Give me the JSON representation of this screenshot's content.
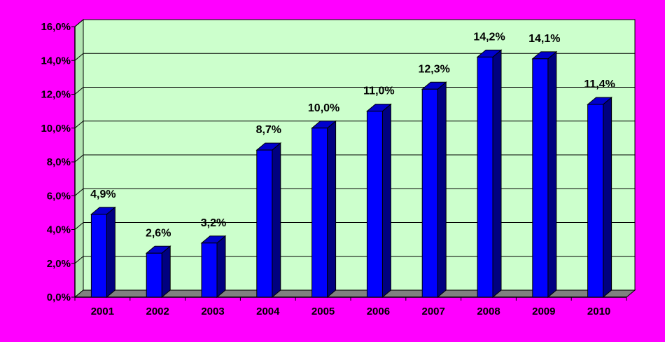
{
  "chart_data": {
    "type": "bar",
    "title": "",
    "xlabel": "",
    "ylabel": "",
    "categories": [
      "2001",
      "2002",
      "2003",
      "2004",
      "2005",
      "2006",
      "2007",
      "2008",
      "2009",
      "2010"
    ],
    "values": [
      4.9,
      2.6,
      3.2,
      8.7,
      10.0,
      11.0,
      12.3,
      14.2,
      14.1,
      11.4
    ],
    "value_labels": [
      "4,9%",
      "2,6%",
      "3,2%",
      "8,7%",
      "10,0%",
      "11,0%",
      "12,3%",
      "14,2%",
      "14,1%",
      "11,4%"
    ],
    "ylim": [
      0,
      16
    ],
    "y_ticks": [
      0,
      2,
      4,
      6,
      8,
      10,
      12,
      14,
      16
    ],
    "y_tick_labels": [
      "0,0%",
      "2,0%",
      "4,0%",
      "6,0%",
      "8,0%",
      "10,0%",
      "12,0%",
      "14,0%",
      "16,0%"
    ],
    "grid": true,
    "legend": "none",
    "style": "3d-column"
  },
  "colors": {
    "background": "#ff00ff",
    "plot_area": "#ccffcc",
    "floor": "#808080",
    "bar_front": "#0000ff",
    "bar_side": "#000080",
    "bar_top": "#0000cc",
    "gridline": "#000000"
  }
}
